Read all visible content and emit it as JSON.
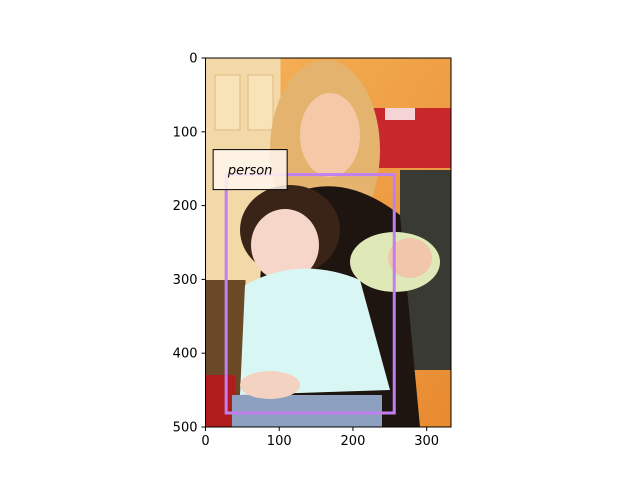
{
  "image": {
    "description_icon": "photo-placeholder",
    "colors": {
      "background_wall": "#f3a24a",
      "door": "#f4d4a0",
      "sweater": "#d8f6f4",
      "hair_child": "#3a2418",
      "hair_woman": "#e7b870",
      "box_color": "#c080f0"
    }
  },
  "axes": {
    "x_ticks": [
      "0",
      "100",
      "200",
      "300"
    ],
    "y_ticks": [
      "0",
      "100",
      "200",
      "300",
      "400",
      "500"
    ],
    "x_range": [
      0,
      333
    ],
    "y_range": [
      0,
      500
    ]
  },
  "detections": [
    {
      "label": "person",
      "box": {
        "x_min": 28,
        "y_min": 158,
        "x_max": 256,
        "y_max": 481
      }
    }
  ]
}
